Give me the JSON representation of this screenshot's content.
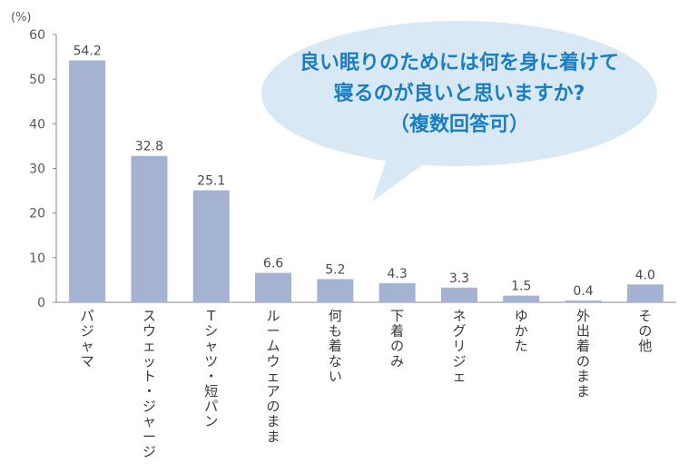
{
  "chart_data": {
    "type": "bar",
    "unit_label": "(%)",
    "ylim": [
      0,
      60
    ],
    "yticks": [
      0,
      10,
      20,
      30,
      40,
      50,
      60
    ],
    "grid": false,
    "bar_color": "#a4b3d1",
    "categories": [
      "パジャマ",
      "スウェット・ジャージ",
      "Tシャツ・短パン",
      "ルームウェアのまま",
      "何も着ない",
      "下着のみ",
      "ネグリジェ",
      "ゆかた",
      "外出着のまま",
      "その他"
    ],
    "values": [
      54.2,
      32.8,
      25.1,
      6.6,
      5.2,
      4.3,
      3.3,
      1.5,
      0.4,
      4.0
    ],
    "value_labels": [
      "54.2",
      "32.8",
      "25.1",
      "6.6",
      "5.2",
      "4.3",
      "3.3",
      "1.5",
      "0.4",
      "4.0"
    ],
    "question": {
      "lines": [
        "良い眠りのためには何を身に着けて",
        "寝るのが良いと思いますか?",
        "（複数回答可）"
      ],
      "bubble_color": "#d9e8f5",
      "text_color": "#1a7ec4"
    }
  }
}
